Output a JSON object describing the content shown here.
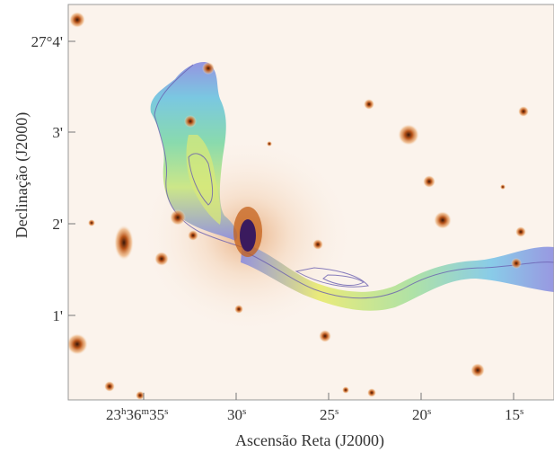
{
  "figure": {
    "x_axis_title": "Ascensão Reta (J2000)",
    "y_axis_title": "Declinação (J2000)",
    "x_ticks": [
      {
        "main": "23",
        "h": "h",
        "mid": "36",
        "m": "m",
        "sec": "35",
        "s": "s"
      },
      {
        "main": "30",
        "s": "s"
      },
      {
        "main": "25",
        "s": "s"
      },
      {
        "main": "20",
        "s": "s"
      },
      {
        "main": "15",
        "s": "s"
      }
    ],
    "y_ticks": [
      "27°4'",
      "3'",
      "2'",
      "1'"
    ],
    "colors": {
      "background": "#fbf3ec",
      "galaxy_core": "#3a1a5e",
      "galaxy_halo": "#d9782a",
      "jet_outer": "#8c8de0",
      "jet_mid": "#5fd0c8",
      "jet_inner": "#e8ea70",
      "contour": "#6a5fb0"
    }
  }
}
